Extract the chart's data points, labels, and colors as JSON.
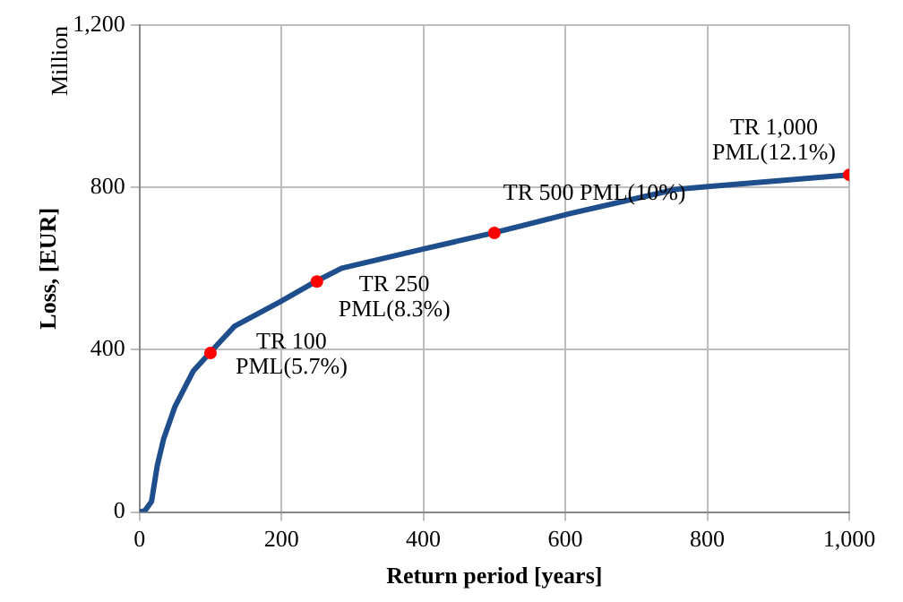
{
  "chart_data": {
    "type": "line",
    "xlabel": "Return period [years]",
    "ylabel": "Loss, [EUR]",
    "xlim": [
      0,
      1000
    ],
    "xticks": [
      0,
      200,
      400,
      600,
      800,
      {
        "value": 1000,
        "label": "1,000"
      }
    ],
    "ylim": [
      0,
      1200
    ],
    "yticks": [
      0,
      400,
      800,
      {
        "value": 1200,
        "label": "1,200"
      }
    ],
    "grid": true,
    "legend": false,
    "series": [
      {
        "color": "#1f4e8c",
        "marker": "none",
        "x": [
          0,
          8,
          17,
          25,
          34,
          50,
          76,
          99,
          134,
          197,
          248,
          285,
          399,
          499,
          608,
          755,
          801,
          1000
        ],
        "values": [
          0,
          4,
          26,
          114,
          180,
          260,
          348,
          392,
          458,
          517,
          568,
          601,
          648,
          688,
          736,
          795,
          802,
          831
        ]
      },
      {
        "type": "scatter",
        "color": "#ff0000",
        "marker": "circle",
        "x": [
          100,
          250,
          500,
          1000
        ],
        "values": [
          392,
          568,
          688,
          831
        ]
      }
    ],
    "annotations": [
      "Million",
      {
        "text": "TR 100\nPML(5.7%)",
        "x": 100,
        "y": 392
      },
      {
        "text": "TR 250\nPML(8.3%)",
        "x": 250,
        "y": 568
      },
      {
        "text": "TR 500 PML(10%)",
        "x": 500,
        "y": 688
      },
      {
        "text": "TR 1,000\nPML(12.1%)",
        "x": 1000,
        "y": 831
      }
    ]
  }
}
